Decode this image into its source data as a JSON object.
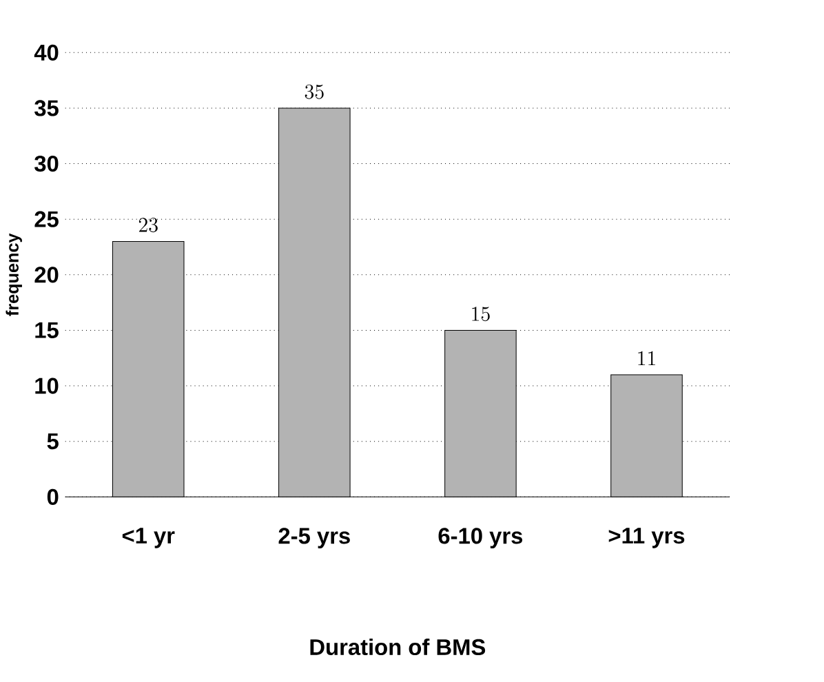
{
  "chart_data": {
    "type": "bar",
    "categories": [
      "<1 yr",
      "2-5 yrs",
      "6-10 yrs",
      ">11 yrs"
    ],
    "values": [
      23,
      35,
      15,
      11
    ],
    "color": "#b3b3b3",
    "xlabel": "Duration of BMS",
    "ylabel": "frequency",
    "ylim": [
      0,
      40
    ],
    "yticks": [
      0,
      5,
      10,
      15,
      20,
      25,
      30,
      35,
      40
    ],
    "grid": "y",
    "data_labels": true
  }
}
